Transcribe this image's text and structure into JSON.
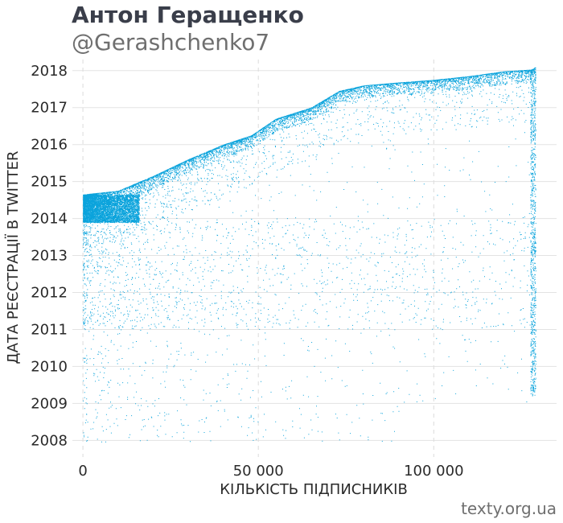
{
  "header": {
    "title": "Антон Геращенко",
    "subtitle": "@Gerashchenko7"
  },
  "footer": {
    "credit": "texty.org.ua"
  },
  "chart_data": {
    "type": "scatter",
    "xlabel": "КІЛЬКІСТЬ ПІДПИСНИКІВ",
    "ylabel": "ДАТА РЕЄСТРАЦІЇ В TWITTER",
    "xlim": [
      -3000,
      135000
    ],
    "ylim": [
      2007.55,
      2018.3
    ],
    "x_ticks": [
      0,
      50000,
      100000
    ],
    "x_tick_labels": [
      "0",
      "50 000",
      "100 000"
    ],
    "y_ticks": [
      2008,
      2009,
      2010,
      2011,
      2012,
      2013,
      2014,
      2015,
      2016,
      2017,
      2018
    ],
    "y_tick_labels": [
      "2008",
      "2009",
      "2010",
      "2011",
      "2012",
      "2013",
      "2014",
      "2015",
      "2016",
      "2017",
      "2018"
    ],
    "point_color": "#0aa3dc",
    "grid": true,
    "legend": "none",
    "frontier": {
      "x": [
        0,
        10000,
        20000,
        30000,
        40000,
        48000,
        55000,
        65000,
        73000,
        80000,
        90000,
        100000,
        110000,
        120000,
        128000,
        129000
      ],
      "y": [
        2014.65,
        2014.75,
        2015.15,
        2015.6,
        2016.0,
        2016.25,
        2016.7,
        2017.0,
        2017.45,
        2017.6,
        2017.68,
        2017.75,
        2017.85,
        2017.98,
        2018.03,
        2018.1
      ]
    }
  }
}
